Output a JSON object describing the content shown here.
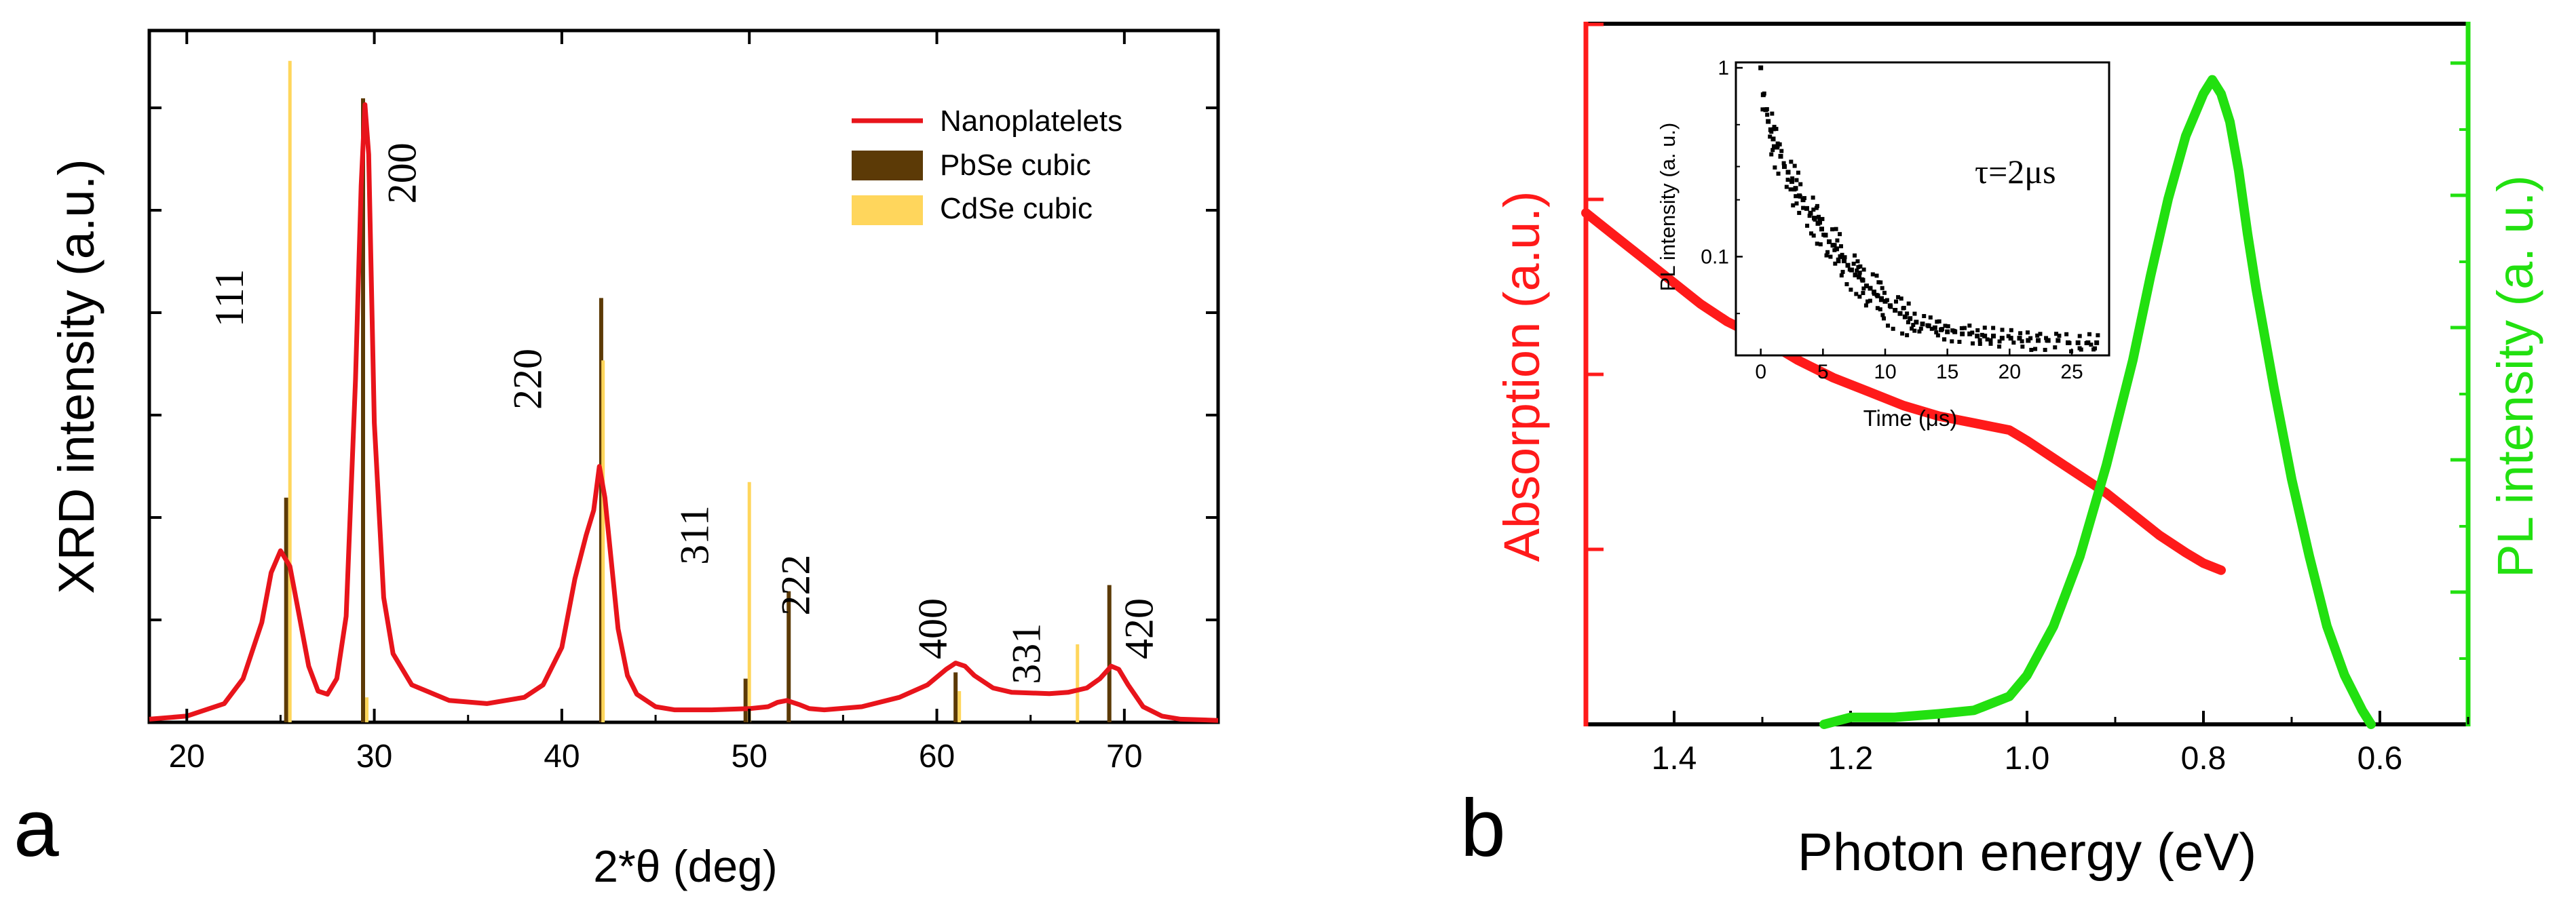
{
  "chart_data": [
    {
      "panel": "a",
      "type": "line",
      "panel_label": "a",
      "xlabel": "2*θ (deg)",
      "ylabel": "XRD intensity (a.u.)",
      "xlim": [
        18,
        75
      ],
      "ylim": [
        0,
        1.0
      ],
      "x_ticks": [
        20,
        30,
        40,
        50,
        60,
        70
      ],
      "legend": {
        "placement": "top-right",
        "entries": [
          {
            "name": "Nanoplatelets",
            "color": "#e8141b",
            "style": "line"
          },
          {
            "name": "PbSe cubic",
            "color": "#5c3a06",
            "style": "patch"
          },
          {
            "name": "CdSe cubic",
            "color": "#ffd65c",
            "style": "patch"
          }
        ]
      },
      "series": [
        {
          "name": "Nanoplatelets",
          "color": "#e8141b",
          "x": [
            18,
            20,
            22,
            23,
            24,
            24.5,
            25,
            25.5,
            26,
            26.5,
            27,
            27.5,
            28,
            28.5,
            29,
            29.3,
            29.5,
            29.7,
            30,
            30.5,
            31,
            32,
            34,
            36,
            38,
            39,
            40,
            40.7,
            41.3,
            41.7,
            42,
            42.3,
            42.7,
            43,
            43.5,
            44,
            45,
            46,
            48,
            50,
            51,
            51.5,
            52,
            52.3,
            52.7,
            53.2,
            54,
            56,
            58,
            59.5,
            60.5,
            61,
            61.5,
            62,
            63,
            64,
            66,
            67,
            68,
            68.7,
            69.3,
            69.7,
            70.2,
            71,
            72,
            73,
            75
          ],
          "y": [
            0.005,
            0.01,
            0.03,
            0.07,
            0.16,
            0.24,
            0.275,
            0.25,
            0.17,
            0.09,
            0.05,
            0.045,
            0.07,
            0.17,
            0.55,
            0.86,
            0.99,
            0.91,
            0.48,
            0.2,
            0.11,
            0.06,
            0.035,
            0.03,
            0.04,
            0.06,
            0.12,
            0.23,
            0.3,
            0.34,
            0.41,
            0.36,
            0.24,
            0.15,
            0.075,
            0.045,
            0.025,
            0.02,
            0.02,
            0.022,
            0.025,
            0.032,
            0.035,
            0.032,
            0.028,
            0.022,
            0.02,
            0.025,
            0.04,
            0.06,
            0.085,
            0.095,
            0.09,
            0.075,
            0.055,
            0.048,
            0.046,
            0.048,
            0.055,
            0.07,
            0.09,
            0.085,
            0.06,
            0.025,
            0.01,
            0.005,
            0.003
          ]
        }
      ],
      "reference_lines": [
        {
          "name": "PbSe cubic",
          "color": "#5c3a06",
          "x": [
            25.3,
            29.4,
            42.1,
            49.8,
            52.1,
            61.0,
            69.2
          ],
          "y": [
            0.36,
            1.0,
            0.68,
            0.07,
            0.21,
            0.08,
            0.22
          ]
        },
        {
          "name": "CdSe cubic",
          "color": "#ffd65c",
          "x": [
            25.5,
            29.6,
            42.2,
            50.0,
            61.2,
            67.5
          ],
          "y": [
            1.06,
            0.04,
            0.58,
            0.385,
            0.05,
            0.125
          ]
        }
      ],
      "peak_labels": [
        {
          "text": "111",
          "x": 23.0,
          "y": 0.68
        },
        {
          "text": "200",
          "x": 32.2,
          "y": 0.88
        },
        {
          "text": "220",
          "x": 38.9,
          "y": 0.55
        },
        {
          "text": "311",
          "x": 47.8,
          "y": 0.3
        },
        {
          "text": "222",
          "x": 53.2,
          "y": 0.22
        },
        {
          "text": "400",
          "x": 60.5,
          "y": 0.15
        },
        {
          "text": "331",
          "x": 65.5,
          "y": 0.11
        },
        {
          "text": "420",
          "x": 71.5,
          "y": 0.15
        }
      ]
    },
    {
      "panel": "b",
      "type": "line",
      "panel_label": "b",
      "xlabel": "Photon energy (eV)",
      "ylabel_left": "Absorption (a.u.)",
      "ylabel_right": "PL intensity (a. u.)",
      "xlim": [
        1.5,
        0.5
      ],
      "ylim": [
        0,
        1.0
      ],
      "x_ticks": [
        1.4,
        1.2,
        1.0,
        0.8,
        0.6
      ],
      "x_tick_labels": [
        "1.4",
        "1.2",
        "1.0",
        "0.8",
        "0.6"
      ],
      "left_axis_color": "#ff1a1a",
      "right_axis_color": "#22e010",
      "series": [
        {
          "name": "Absorption",
          "color": "#ff1a1a",
          "axis": "left",
          "x": [
            1.5,
            1.48,
            1.45,
            1.42,
            1.4,
            1.37,
            1.34,
            1.3,
            1.26,
            1.22,
            1.18,
            1.14,
            1.1,
            1.06,
            1.04,
            1.02,
            1.0,
            0.97,
            0.94,
            0.91,
            0.88,
            0.85,
            0.82,
            0.8,
            0.78
          ],
          "y": [
            0.73,
            0.71,
            0.68,
            0.65,
            0.63,
            0.6,
            0.575,
            0.55,
            0.52,
            0.495,
            0.475,
            0.455,
            0.44,
            0.43,
            0.425,
            0.42,
            0.405,
            0.38,
            0.355,
            0.33,
            0.3,
            0.27,
            0.245,
            0.23,
            0.22
          ]
        },
        {
          "name": "PL",
          "color": "#22e010",
          "axis": "right",
          "x": [
            1.23,
            1.2,
            1.15,
            1.1,
            1.06,
            1.02,
            1.0,
            0.97,
            0.94,
            0.91,
            0.88,
            0.86,
            0.84,
            0.82,
            0.8,
            0.79,
            0.78,
            0.77,
            0.76,
            0.75,
            0.74,
            0.72,
            0.7,
            0.68,
            0.66,
            0.64,
            0.62,
            0.61
          ],
          "y": [
            0.0,
            0.01,
            0.01,
            0.015,
            0.02,
            0.04,
            0.07,
            0.14,
            0.24,
            0.37,
            0.52,
            0.64,
            0.75,
            0.84,
            0.9,
            0.92,
            0.9,
            0.86,
            0.79,
            0.7,
            0.62,
            0.48,
            0.35,
            0.24,
            0.14,
            0.07,
            0.02,
            0.0
          ]
        }
      ],
      "inset": {
        "type": "scatter",
        "xlabel": "Time (μs)",
        "ylabel": "PL intensity (a. u.)",
        "annotation": "τ=2μs",
        "xlim": [
          -2,
          28
        ],
        "ylim": [
          0.03,
          1.0
        ],
        "y_scale": "log",
        "x_ticks": [
          0,
          5,
          10,
          15,
          20,
          25
        ],
        "y_ticks": [
          1,
          0.1
        ],
        "y_tick_labels": [
          "1",
          "0.1"
        ],
        "decay_tau_us": 2,
        "points": {
          "color": "#000000",
          "x": [
            0,
            0.2,
            0.4,
            0.6,
            0.8,
            1.0,
            1.3,
            1.6,
            1.9,
            2.2,
            2.5,
            2.8,
            3.1,
            3.4,
            3.7,
            4.0,
            4.3,
            4.6,
            4.9,
            5.2,
            5.5,
            5.8,
            6.1,
            6.4,
            6.7,
            7.0,
            7.3,
            7.6,
            7.9,
            8.2,
            8.5,
            8.8,
            9.1,
            9.4,
            9.7,
            10.0,
            10.4,
            10.8,
            11.2,
            11.6,
            12.0,
            12.5,
            13.0,
            13.5,
            14.0,
            14.5,
            15.0,
            15.6,
            16.2,
            16.8,
            17.4,
            18.0,
            18.7,
            19.4,
            20.1,
            20.8,
            21.5,
            22.3,
            23.1,
            23.9,
            24.7,
            25.5,
            26.3,
            27.0
          ],
          "y": [
            1.0,
            0.72,
            0.6,
            0.52,
            0.47,
            0.42,
            0.38,
            0.34,
            0.3,
            0.28,
            0.25,
            0.23,
            0.21,
            0.2,
            0.18,
            0.17,
            0.16,
            0.15,
            0.14,
            0.13,
            0.12,
            0.115,
            0.11,
            0.1,
            0.095,
            0.09,
            0.085,
            0.08,
            0.078,
            0.075,
            0.07,
            0.068,
            0.065,
            0.062,
            0.06,
            0.058,
            0.055,
            0.052,
            0.05,
            0.048,
            0.047,
            0.045,
            0.044,
            0.043,
            0.042,
            0.041,
            0.04,
            0.04,
            0.039,
            0.039,
            0.038,
            0.038,
            0.038,
            0.037,
            0.037,
            0.037,
            0.036,
            0.036,
            0.036,
            0.036,
            0.035,
            0.035,
            0.035,
            0.035
          ]
        }
      }
    }
  ]
}
